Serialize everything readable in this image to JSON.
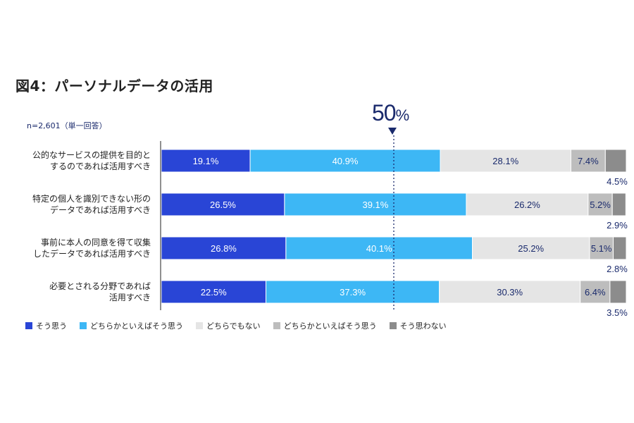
{
  "title": "図4：パーソナルデータの活用",
  "note": "n=2,601（単一回答）",
  "marker": {
    "value": "50",
    "unit": "%"
  },
  "chart_data": {
    "type": "bar",
    "orientation": "horizontal",
    "stacked": true,
    "xlim": [
      0,
      100
    ],
    "reference_line": 50,
    "categories": [
      "公的なサービスの提供を目的と\nするのであれば活用すべき",
      "特定の個人を識別できない形の\nデータであれば活用すべき",
      "事前に本人の同意を得て収集\nしたデータであれば活用すべき",
      "必要とされる分野であれば\n活用すべき"
    ],
    "series": [
      {
        "name": "そう思う",
        "color": "#2945d6",
        "label_color": "#ffffff",
        "values": [
          19.1,
          26.5,
          26.8,
          22.5
        ]
      },
      {
        "name": "どちらかといえばそう思う",
        "color": "#3db7f5",
        "label_color": "#ffffff",
        "values": [
          40.9,
          39.1,
          40.1,
          37.3
        ]
      },
      {
        "name": "どちらでもない",
        "color": "#e5e5e5",
        "label_color": "#1a2a6c",
        "values": [
          28.1,
          26.2,
          25.2,
          30.3
        ]
      },
      {
        "name": "どちらかといえばそう思う",
        "color": "#bdbdbd",
        "label_color": "#1a2a6c",
        "values": [
          7.4,
          5.2,
          5.1,
          6.4
        ]
      },
      {
        "name": "そう思わない",
        "color": "#8c8c8c",
        "label_color": "#1a2a6c",
        "values": [
          4.5,
          2.9,
          2.8,
          3.5
        ]
      }
    ],
    "value_labels": [
      [
        "19.1%",
        "40.9%",
        "28.1%",
        "7.4%",
        "4.5%"
      ],
      [
        "26.5%",
        "39.1%",
        "26.2%",
        "5.2%",
        "2.9%"
      ],
      [
        "26.8%",
        "40.1%",
        "25.2%",
        "5.1%",
        "2.8%"
      ],
      [
        "22.5%",
        "37.3%",
        "30.3%",
        "6.4%",
        "3.5%"
      ]
    ],
    "legend_position": "bottom-left"
  }
}
